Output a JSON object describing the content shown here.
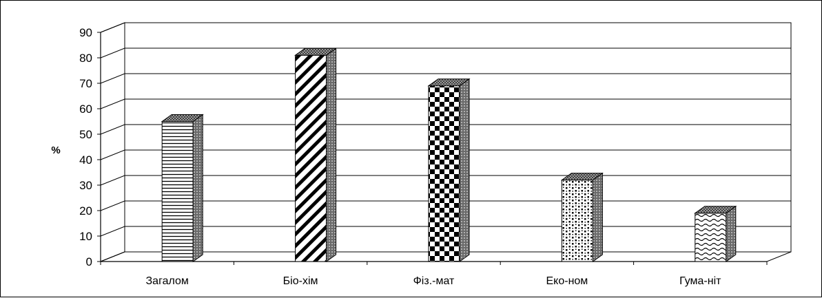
{
  "chart_data": {
    "type": "bar",
    "categories": [
      "Загалом",
      "Біо-хім",
      "Фіз.-мат",
      "Еко-ном",
      "Гума-ніт"
    ],
    "values": [
      55,
      81,
      69,
      32,
      19
    ],
    "patterns": [
      "horizontal-lines",
      "diagonal-stripes",
      "checkerboard",
      "dots",
      "waves"
    ],
    "title": "",
    "xlabel": "",
    "ylabel": "%",
    "ylim": [
      0,
      90
    ],
    "yticks": [
      0,
      10,
      20,
      30,
      40,
      50,
      60,
      70,
      80,
      90
    ],
    "grid": true,
    "style": "3d",
    "colors": {
      "face": "#ffffff",
      "ink": "#000000",
      "side": "#808080"
    }
  }
}
